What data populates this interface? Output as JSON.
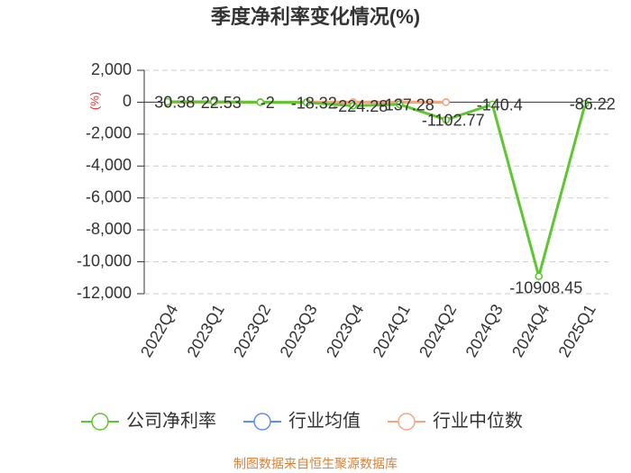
{
  "chart_data": {
    "type": "line",
    "title": "季度净利率变化情况(%)",
    "y_label": "(%)",
    "categories": [
      "2022Q4",
      "2023Q1",
      "2023Q2",
      "2023Q3",
      "2023Q4",
      "2024Q1",
      "2024Q2",
      "2024Q3",
      "2024Q4",
      "2025Q1"
    ],
    "series": [
      {
        "name": "公司净利率",
        "color": "#5cc72e",
        "values": [
          30.38,
          22.53,
          -2,
          -18.32,
          -224.28,
          -137.28,
          -1102.77,
          -140.4,
          -10908.45,
          -86.22
        ],
        "labels": true
      },
      {
        "name": "行业均值",
        "color": "#5b8ff9",
        "values": [
          6,
          5,
          4,
          3,
          2,
          2,
          1,
          null,
          null,
          null
        ],
        "labels": false
      },
      {
        "name": "行业中位数",
        "color": "#f4a77c",
        "values": [
          6,
          5,
          4,
          3,
          2,
          2,
          1,
          null,
          null,
          null
        ],
        "labels": false
      }
    ],
    "ylim": [
      -12000,
      2000
    ],
    "yticks": [
      {
        "value": 2000,
        "label": "2,000"
      },
      0,
      {
        "value": -2000,
        "label": "-2,000"
      },
      {
        "value": -4000,
        "label": "-4,000"
      },
      {
        "value": -6000,
        "label": "-6,000"
      },
      {
        "value": -8000,
        "label": "-8,000"
      },
      {
        "value": -10000,
        "label": "-10,000"
      },
      {
        "value": -12000,
        "label": "-12,000"
      }
    ],
    "grid": true,
    "source": "制图数据来自恒生聚源数据库"
  }
}
